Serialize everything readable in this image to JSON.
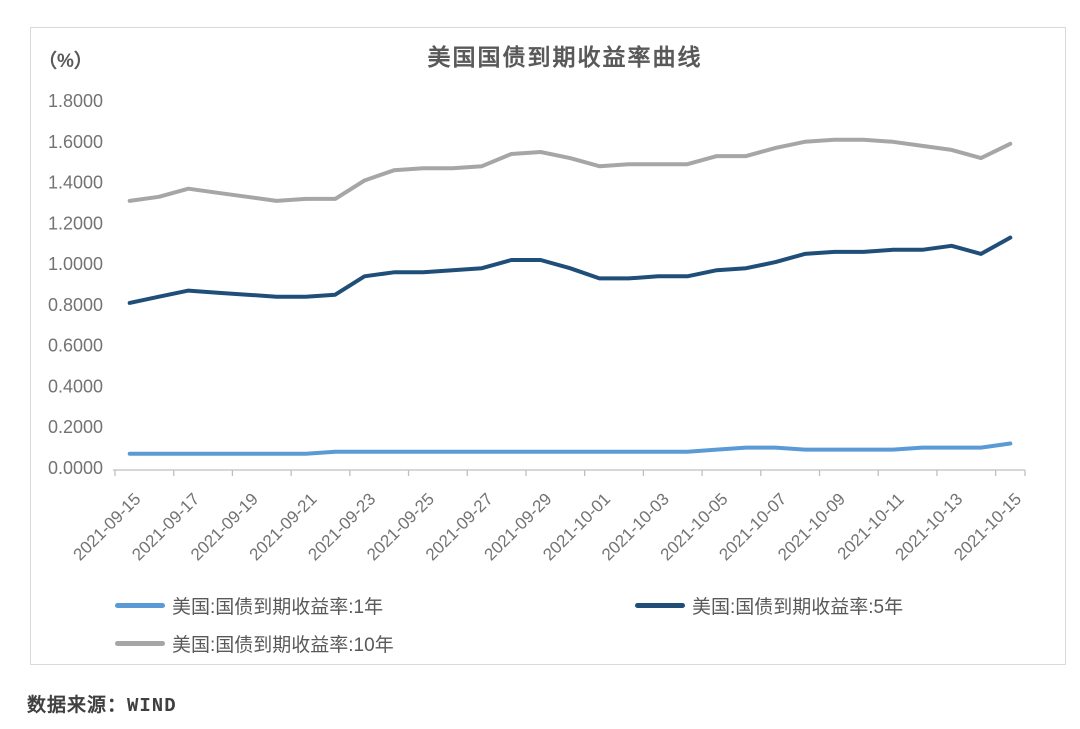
{
  "chart": {
    "title": "美国国债到期收益率曲线",
    "unit": "（%）"
  },
  "source": {
    "text": "数据来源：WIND"
  },
  "colors": {
    "us1y": "#5B9BD5",
    "us5y": "#1F4E79",
    "us10y": "#A6A6A6",
    "axis": "#BFBFBF",
    "frame_border": "#D9D9D9",
    "tick_label": "#737373",
    "title_text": "#595959"
  },
  "chart_data": {
    "type": "line",
    "title": "美国国债到期收益率曲线",
    "ylabel": "（%）",
    "xlabel": "",
    "ylim": [
      0.0,
      1.8
    ],
    "y_tick_step": 0.2,
    "y_tick_decimals": 4,
    "grid": false,
    "legend_position": "bottom",
    "x": [
      "2021-09-15",
      "2021-09-16",
      "2021-09-17",
      "2021-09-18",
      "2021-09-19",
      "2021-09-20",
      "2021-09-21",
      "2021-09-22",
      "2021-09-23",
      "2021-09-24",
      "2021-09-25",
      "2021-09-26",
      "2021-09-27",
      "2021-09-28",
      "2021-09-29",
      "2021-09-30",
      "2021-10-01",
      "2021-10-02",
      "2021-10-03",
      "2021-10-04",
      "2021-10-05",
      "2021-10-06",
      "2021-10-07",
      "2021-10-08",
      "2021-10-09",
      "2021-10-10",
      "2021-10-11",
      "2021-10-12",
      "2021-10-13",
      "2021-10-14",
      "2021-10-15"
    ],
    "x_tick_labels": [
      "2021-09-15",
      "2021-09-17",
      "2021-09-19",
      "2021-09-21",
      "2021-09-23",
      "2021-09-25",
      "2021-09-27",
      "2021-09-29",
      "2021-10-01",
      "2021-10-03",
      "2021-10-05",
      "2021-10-07",
      "2021-10-09",
      "2021-10-11",
      "2021-10-13",
      "2021-10-15"
    ],
    "series": [
      {
        "name": "美国:国债到期收益率:1年",
        "color": "#5B9BD5",
        "values": [
          0.07,
          0.07,
          0.07,
          0.07,
          0.07,
          0.07,
          0.07,
          0.08,
          0.08,
          0.08,
          0.08,
          0.08,
          0.08,
          0.08,
          0.08,
          0.08,
          0.08,
          0.08,
          0.08,
          0.08,
          0.09,
          0.1,
          0.1,
          0.09,
          0.09,
          0.09,
          0.09,
          0.1,
          0.1,
          0.1,
          0.12
        ]
      },
      {
        "name": "美国:国债到期收益率:5年",
        "color": "#1F4E79",
        "values": [
          0.81,
          0.84,
          0.87,
          0.86,
          0.85,
          0.84,
          0.84,
          0.85,
          0.94,
          0.96,
          0.96,
          0.97,
          0.98,
          1.02,
          1.02,
          0.98,
          0.93,
          0.93,
          0.94,
          0.94,
          0.97,
          0.98,
          1.01,
          1.05,
          1.06,
          1.06,
          1.07,
          1.07,
          1.09,
          1.05,
          1.13
        ]
      },
      {
        "name": "美国:国债到期收益率:10年",
        "color": "#A6A6A6",
        "values": [
          1.31,
          1.33,
          1.37,
          1.35,
          1.33,
          1.31,
          1.32,
          1.32,
          1.41,
          1.46,
          1.47,
          1.47,
          1.48,
          1.54,
          1.55,
          1.52,
          1.48,
          1.49,
          1.49,
          1.49,
          1.53,
          1.53,
          1.57,
          1.6,
          1.61,
          1.61,
          1.6,
          1.58,
          1.56,
          1.52,
          1.59
        ]
      }
    ]
  }
}
